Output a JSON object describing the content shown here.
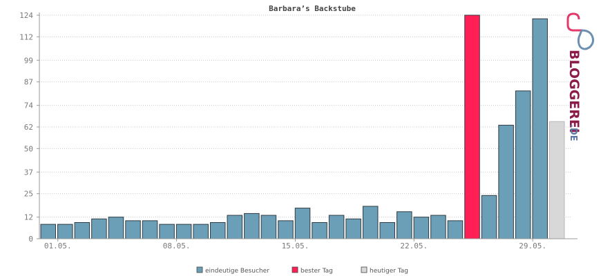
{
  "chart_data": {
    "type": "bar",
    "title": "Barbara’s Backstube",
    "xlabel": "",
    "ylabel": "",
    "ylim": [
      0,
      124
    ],
    "y_ticks": [
      0,
      12,
      25,
      37,
      50,
      62,
      74,
      87,
      99,
      112,
      124
    ],
    "grid": true,
    "x_tick_labels": [
      {
        "index": 0,
        "label": "01.05."
      },
      {
        "index": 7,
        "label": "08.05."
      },
      {
        "index": 14,
        "label": "15.05."
      },
      {
        "index": 21,
        "label": "22.05."
      },
      {
        "index": 28,
        "label": "29.05."
      }
    ],
    "values": [
      8,
      8,
      9,
      11,
      12,
      10,
      10,
      8,
      8,
      8,
      9,
      13,
      14,
      13,
      10,
      17,
      9,
      13,
      11,
      18,
      9,
      15,
      12,
      13,
      10,
      124,
      24,
      63,
      82,
      122,
      65
    ],
    "bar_kinds": [
      "visitors",
      "visitors",
      "visitors",
      "visitors",
      "visitors",
      "visitors",
      "visitors",
      "visitors",
      "visitors",
      "visitors",
      "visitors",
      "visitors",
      "visitors",
      "visitors",
      "visitors",
      "visitors",
      "visitors",
      "visitors",
      "visitors",
      "visitors",
      "visitors",
      "visitors",
      "visitors",
      "visitors",
      "visitors",
      "best",
      "visitors",
      "visitors",
      "visitors",
      "visitors",
      "today"
    ],
    "legend_position": "bottom",
    "legend": [
      {
        "key": "visitors",
        "label": "eindeutige Besucher",
        "color": "#6a9fb7"
      },
      {
        "key": "best",
        "label": "bester Tag",
        "color": "#ff1f55"
      },
      {
        "key": "today",
        "label": "heutiger Tag",
        "color": "#d8d8d8"
      }
    ]
  },
  "brand": {
    "name": "BLOGGEREI",
    "suffix": ".DE",
    "color_primary": "#8c1b4a",
    "color_secondary": "#5b7aa3"
  }
}
